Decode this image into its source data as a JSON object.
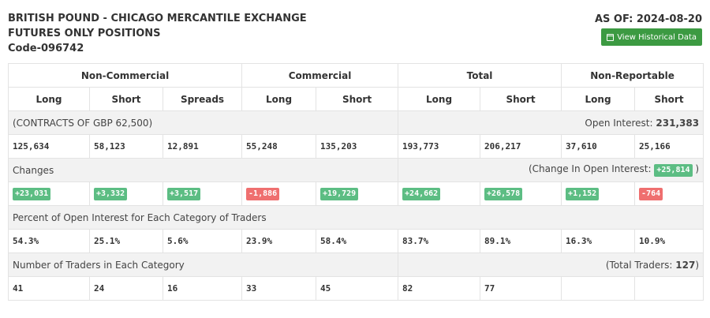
{
  "header": {
    "title_line1": "BRITISH POUND - CHICAGO MERCANTILE EXCHANGE",
    "title_line2": "FUTURES ONLY POSITIONS",
    "code": "Code-096742",
    "as_of": "AS OF: 2024-08-20",
    "button_label": "View Historical Data",
    "button_icon": "calendar-icon"
  },
  "groups": [
    "Non-Commercial",
    "Commercial",
    "Total",
    "Non-Reportable"
  ],
  "columns": [
    "Long",
    "Short",
    "Spreads",
    "Long",
    "Short",
    "Long",
    "Short",
    "Long",
    "Short"
  ],
  "contracts_label": "(CONTRACTS OF GBP 62,500)",
  "open_interest": {
    "label": "Open Interest:",
    "value": "231,383"
  },
  "positions": [
    "125,634",
    "58,123",
    "12,891",
    "55,248",
    "135,203",
    "193,773",
    "206,217",
    "37,610",
    "25,166"
  ],
  "changes_label": "Changes",
  "change_oi": {
    "prefix": "(Change In Open Interest:",
    "value": "+25,814",
    "suffix": ")"
  },
  "changes": [
    {
      "value": "+23,031",
      "dir": "pos"
    },
    {
      "value": "+3,332",
      "dir": "pos"
    },
    {
      "value": "+3,517",
      "dir": "pos"
    },
    {
      "value": "-1,886",
      "dir": "neg"
    },
    {
      "value": "+19,729",
      "dir": "pos"
    },
    {
      "value": "+24,662",
      "dir": "pos"
    },
    {
      "value": "+26,578",
      "dir": "pos"
    },
    {
      "value": "+1,152",
      "dir": "pos"
    },
    {
      "value": "-764",
      "dir": "neg"
    }
  ],
  "percent_label": "Percent of Open Interest for Each Category of Traders",
  "percents": [
    "54.3%",
    "25.1%",
    "5.6%",
    "23.9%",
    "58.4%",
    "83.7%",
    "89.1%",
    "16.3%",
    "10.9%"
  ],
  "traders_label": "Number of Traders in Each Category",
  "total_traders": {
    "prefix": "(Total Traders:",
    "value": "127",
    "suffix": ")"
  },
  "traders": [
    "41",
    "24",
    "16",
    "33",
    "45",
    "82",
    "77",
    "",
    ""
  ],
  "colors": {
    "positive": "#5cbd83",
    "negative": "#ef6f6f",
    "button": "#3c9a42"
  }
}
